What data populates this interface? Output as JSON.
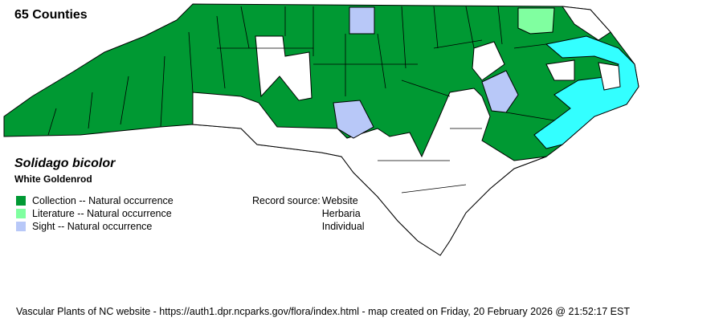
{
  "title": "65 Counties",
  "species": {
    "scientific_name": "Solidago bicolor",
    "common_name": "White Goldenrod"
  },
  "legend": [
    {
      "label": "Collection -- Natural occurrence",
      "color": "#009933"
    },
    {
      "label": "Literature -- Natural occurrence",
      "color": "#80ffa0"
    },
    {
      "label": "Sight -- Natural occurrence",
      "color": "#b8c8f8"
    }
  ],
  "record_source": {
    "label": "Record source:",
    "values": [
      "Website",
      "Herbaria",
      "Individual"
    ]
  },
  "colors": {
    "water": "#33ffff",
    "absent": "#ffffff",
    "border": "#000000"
  },
  "footer": "Vascular Plants of NC website - https://auth1.dpr.ncparks.gov/flora/index.html - map created on Friday, 20 February 2026 @ 21:52:17 EST"
}
